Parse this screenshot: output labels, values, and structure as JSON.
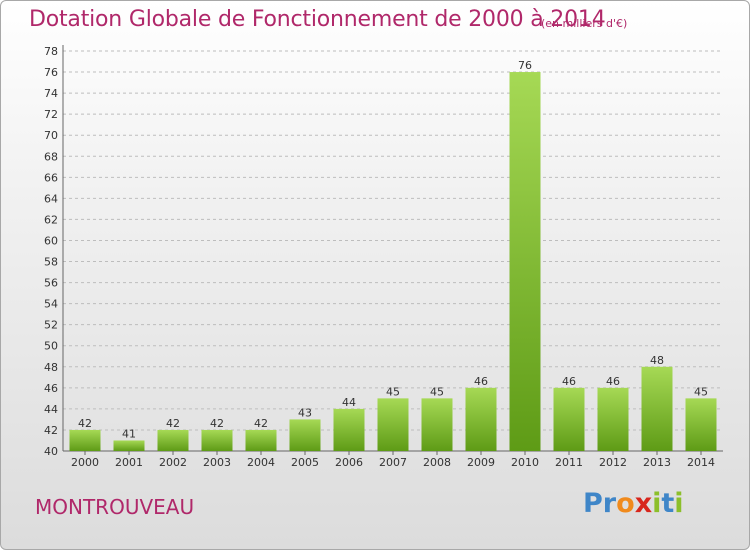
{
  "header": {
    "title": "Dotation Globale de Fonctionnement de 2000 à 2014",
    "unit": "(en milliers d'€)"
  },
  "footer": {
    "commune": "MONTROUVEAU",
    "logo": "Proxiti"
  },
  "colors": {
    "title": "#b0286a",
    "bar_light": "#9fd44a",
    "bar_dark": "#5e9b16"
  },
  "chart_data": {
    "type": "bar",
    "categories": [
      "2000",
      "2001",
      "2002",
      "2003",
      "2004",
      "2005",
      "2006",
      "2007",
      "2008",
      "2009",
      "2010",
      "2011",
      "2012",
      "2013",
      "2014"
    ],
    "values": [
      42,
      41,
      42,
      42,
      42,
      43,
      44,
      45,
      45,
      46,
      76,
      46,
      46,
      48,
      45
    ],
    "ylim": [
      40,
      78
    ],
    "yticks": [
      40,
      42,
      44,
      46,
      48,
      50,
      52,
      54,
      56,
      58,
      60,
      62,
      64,
      66,
      68,
      70,
      72,
      74,
      76,
      78
    ],
    "grid": true
  }
}
